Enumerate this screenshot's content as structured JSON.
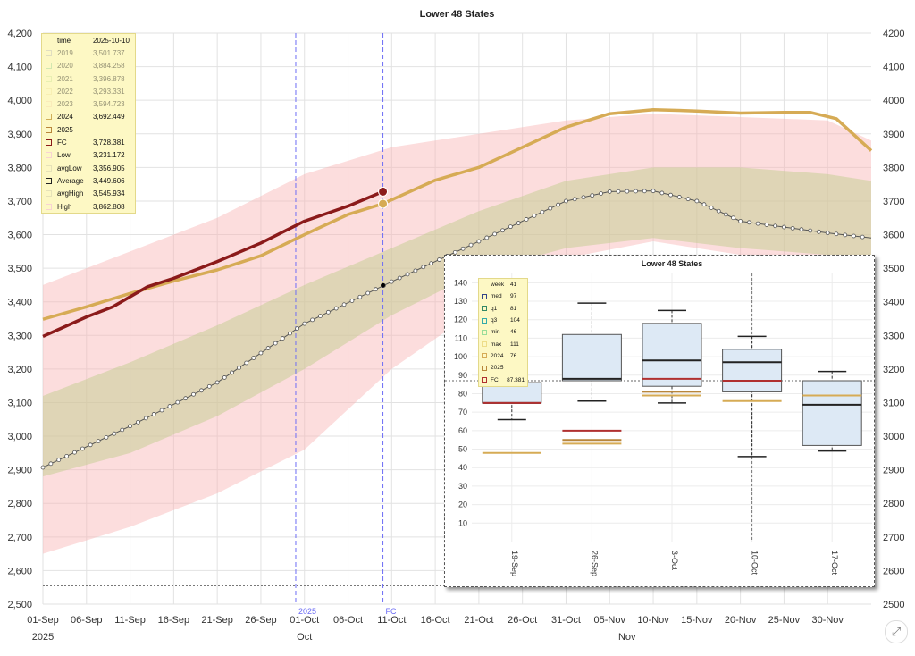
{
  "chart_data": [
    {
      "type": "line",
      "title": "Lower 48 States",
      "x_start": "2025-09-01",
      "x_end": "2025-12-05",
      "ylim": [
        2500,
        4200
      ],
      "y_ticks_left": [
        "2,500",
        "2,600",
        "2,700",
        "2,800",
        "2,900",
        "3,000",
        "3,100",
        "3,200",
        "3,300",
        "3,400",
        "3,500",
        "3,600",
        "3,700",
        "3,800",
        "3,900",
        "4,000",
        "4,100",
        "4,200"
      ],
      "y_ticks_right": [
        "2500",
        "2600",
        "2700",
        "2800",
        "2900",
        "3000",
        "3100",
        "3200",
        "3300",
        "3400",
        "3500",
        "3600",
        "3700",
        "3800",
        "3900",
        "4000",
        "4100",
        "4200"
      ],
      "x_ticks": [
        {
          "date": "2025-09-01",
          "label": "01-Sep"
        },
        {
          "date": "2025-09-06",
          "label": "06-Sep"
        },
        {
          "date": "2025-09-11",
          "label": "11-Sep"
        },
        {
          "date": "2025-09-16",
          "label": "16-Sep"
        },
        {
          "date": "2025-09-21",
          "label": "21-Sep"
        },
        {
          "date": "2025-09-26",
          "label": "26-Sep"
        },
        {
          "date": "2025-10-01",
          "label": "01-Oct"
        },
        {
          "date": "2025-10-06",
          "label": "06-Oct"
        },
        {
          "date": "2025-10-11",
          "label": "11-Oct"
        },
        {
          "date": "2025-10-16",
          "label": "16-Oct"
        },
        {
          "date": "2025-10-21",
          "label": "21-Oct"
        },
        {
          "date": "2025-10-26",
          "label": "26-Oct"
        },
        {
          "date": "2025-10-31",
          "label": "31-Oct"
        },
        {
          "date": "2025-11-05",
          "label": "05-Nov"
        },
        {
          "date": "2025-11-10",
          "label": "10-Nov"
        },
        {
          "date": "2025-11-15",
          "label": "15-Nov"
        },
        {
          "date": "2025-11-20",
          "label": "20-Nov"
        },
        {
          "date": "2025-11-25",
          "label": "25-Nov"
        },
        {
          "date": "2025-11-30",
          "label": "30-Nov"
        }
      ],
      "x_secondary_labels": [
        {
          "date": "2025-09-01",
          "label": "2025"
        },
        {
          "date": "2025-10-01",
          "label": "Oct"
        },
        {
          "date": "2025-11-07",
          "label": "Nov"
        }
      ],
      "markers": [
        {
          "date": "2025-09-30",
          "label": "2025",
          "color": "#6d6df5"
        },
        {
          "date": "2025-10-10",
          "label": "FC",
          "color": "#6d6df5"
        }
      ],
      "reference_y": 2555,
      "legend": {
        "header": {
          "name": "time",
          "value": "2025-10-10"
        },
        "items": [
          {
            "name": "2019",
            "value": "3,501.737",
            "color": "#bdbdbd",
            "dim": true
          },
          {
            "name": "2020",
            "value": "3,884.258",
            "color": "#9fd59a",
            "dim": true
          },
          {
            "name": "2021",
            "value": "3,396.878",
            "color": "#cfe59c",
            "dim": true
          },
          {
            "name": "2022",
            "value": "3,293.331",
            "color": "#f3e5a0",
            "dim": true
          },
          {
            "name": "2023",
            "value": "3,594.723",
            "color": "#f7dcae",
            "dim": true
          },
          {
            "name": "2024",
            "value": "3,692.449",
            "color": "#cfae56",
            "dim": false
          },
          {
            "name": "2025",
            "value": "",
            "color": "#b8863b",
            "dim": false
          },
          {
            "name": "FC",
            "value": "3,728.381",
            "color": "#8b1a1a",
            "dim": false
          },
          {
            "name": "Low",
            "value": "3,231.172",
            "color": "#f8d3d3",
            "dim": false
          },
          {
            "name": "avgLow",
            "value": "3,356.905",
            "color": "#e6e2b8",
            "dim": false
          },
          {
            "name": "Average",
            "value": "3,449.606",
            "color": "#222222",
            "dim": false
          },
          {
            "name": "avgHigh",
            "value": "3,545.934",
            "color": "#e6e2b8",
            "dim": false
          },
          {
            "name": "High",
            "value": "3,862.808",
            "color": "#f8d3d3",
            "dim": false
          }
        ]
      },
      "series": [
        {
          "name": "2024",
          "color": "#d6ab55",
          "x": [
            "2025-09-01",
            "2025-09-06",
            "2025-09-11",
            "2025-09-16",
            "2025-09-21",
            "2025-09-26",
            "2025-10-01",
            "2025-10-06",
            "2025-10-10",
            "2025-10-16",
            "2025-10-21",
            "2025-10-26",
            "2025-10-31",
            "2025-11-05",
            "2025-11-10",
            "2025-11-15",
            "2025-11-20",
            "2025-11-25",
            "2025-11-28",
            "2025-12-01",
            "2025-12-05"
          ],
          "y": [
            3348,
            3385,
            3425,
            3462,
            3495,
            3537,
            3600,
            3660,
            3692,
            3762,
            3800,
            3860,
            3920,
            3960,
            3972,
            3968,
            3962,
            3964,
            3964,
            3945,
            3850
          ]
        },
        {
          "name": "FC",
          "color": "#8b1a1a",
          "x": [
            "2025-09-01",
            "2025-09-03",
            "2025-09-06",
            "2025-09-09",
            "2025-09-13",
            "2025-09-16",
            "2025-09-21",
            "2025-09-26",
            "2025-10-01",
            "2025-10-06",
            "2025-10-10"
          ],
          "y": [
            3297,
            3320,
            3355,
            3385,
            3445,
            3470,
            3520,
            3575,
            3640,
            3685,
            3728
          ]
        },
        {
          "name": "Low",
          "x": [
            "2025-09-01",
            "2025-09-11",
            "2025-09-21",
            "2025-10-01",
            "2025-10-11",
            "2025-10-21",
            "2025-10-31",
            "2025-11-10",
            "2025-11-20",
            "2025-11-30",
            "2025-12-05"
          ],
          "y": [
            2650,
            2730,
            2830,
            2960,
            3200,
            3380,
            3530,
            3580,
            3540,
            3530,
            3480
          ]
        },
        {
          "name": "avgLow",
          "x": [
            "2025-09-01",
            "2025-09-11",
            "2025-09-21",
            "2025-10-01",
            "2025-10-11",
            "2025-10-21",
            "2025-10-31",
            "2025-11-10",
            "2025-11-20",
            "2025-11-30",
            "2025-12-05"
          ],
          "y": [
            2880,
            2950,
            3060,
            3200,
            3360,
            3490,
            3560,
            3590,
            3560,
            3540,
            3520
          ]
        },
        {
          "name": "Average",
          "color": "#555555",
          "x": [
            "2025-09-01",
            "2025-09-11",
            "2025-09-21",
            "2025-10-01",
            "2025-10-11",
            "2025-10-21",
            "2025-10-31",
            "2025-11-05",
            "2025-11-10",
            "2025-11-15",
            "2025-11-20",
            "2025-11-30",
            "2025-12-05"
          ],
          "y": [
            2907,
            3030,
            3160,
            3335,
            3460,
            3580,
            3700,
            3728,
            3730,
            3700,
            3640,
            3605,
            3590
          ]
        },
        {
          "name": "avgHigh",
          "x": [
            "2025-09-01",
            "2025-09-11",
            "2025-09-21",
            "2025-10-01",
            "2025-10-11",
            "2025-10-21",
            "2025-10-31",
            "2025-11-10",
            "2025-11-20",
            "2025-11-30",
            "2025-12-05"
          ],
          "y": [
            3120,
            3220,
            3330,
            3450,
            3560,
            3670,
            3760,
            3800,
            3800,
            3780,
            3760
          ]
        },
        {
          "name": "High",
          "x": [
            "2025-09-01",
            "2025-09-11",
            "2025-09-21",
            "2025-10-01",
            "2025-10-11",
            "2025-10-21",
            "2025-10-31",
            "2025-11-10",
            "2025-11-20",
            "2025-11-30",
            "2025-12-05"
          ],
          "y": [
            3450,
            3550,
            3650,
            3780,
            3860,
            3900,
            3940,
            3960,
            3950,
            3940,
            3880
          ]
        }
      ],
      "highlight_points": [
        {
          "series": "FC",
          "x": "2025-10-10",
          "y": 3728,
          "color": "#8b1a1a"
        },
        {
          "series": "2024",
          "x": "2025-10-10",
          "y": 3692,
          "color": "#d6ab55"
        },
        {
          "series": "Average",
          "x": "2025-10-10",
          "y": 3449,
          "color": "#000000"
        }
      ]
    },
    {
      "type": "box",
      "title": "Lower 48 States",
      "ylim": [
        0,
        145
      ],
      "y_ticks": [
        10,
        20,
        30,
        40,
        50,
        60,
        70,
        80,
        90,
        100,
        110,
        120,
        130,
        140
      ],
      "reference_y": 87,
      "categories": [
        "19-Sep",
        "26-Sep",
        "3-Oct",
        "10-Oct",
        "17-Oct"
      ],
      "boxes": [
        {
          "min": 66,
          "q1": null,
          "med": 75,
          "q3": 86,
          "max": null,
          "v2024": 48,
          "v2025": null,
          "fc": 75
        },
        {
          "min": 76,
          "q1": 87,
          "med": 88,
          "q3": 112,
          "max": 129,
          "v2024": 53,
          "v2025": 55,
          "fc": 60
        },
        {
          "min": 75,
          "q1": 84,
          "med": 98,
          "q3": 118,
          "max": 125,
          "v2024": 79,
          "v2025": 81,
          "fc": 88
        },
        {
          "min": 46,
          "q1": 81,
          "med": 97,
          "q3": 104,
          "max": 111,
          "v2024": 76,
          "v2025": null,
          "fc": 87
        },
        {
          "min": 49,
          "q1": 52,
          "med": 74,
          "q3": 87,
          "max": 92,
          "v2024": 79,
          "v2025": null,
          "fc": null
        }
      ],
      "legend": {
        "header": {
          "name": "week",
          "value": "41"
        },
        "items": [
          {
            "name": "med",
            "value": "97",
            "color": "#334488"
          },
          {
            "name": "q1",
            "value": "81",
            "color": "#338866"
          },
          {
            "name": "q3",
            "value": "104",
            "color": "#33aaaa"
          },
          {
            "name": "min",
            "value": "46",
            "color": "#99dd99"
          },
          {
            "name": "max",
            "value": "111",
            "color": "#eedd88"
          },
          {
            "name": "2024",
            "value": "76",
            "color": "#d6ab55"
          },
          {
            "name": "2025",
            "value": "",
            "color": "#b8863b"
          },
          {
            "name": "FC",
            "value": "87.381",
            "color": "#b03030"
          }
        ]
      }
    }
  ]
}
